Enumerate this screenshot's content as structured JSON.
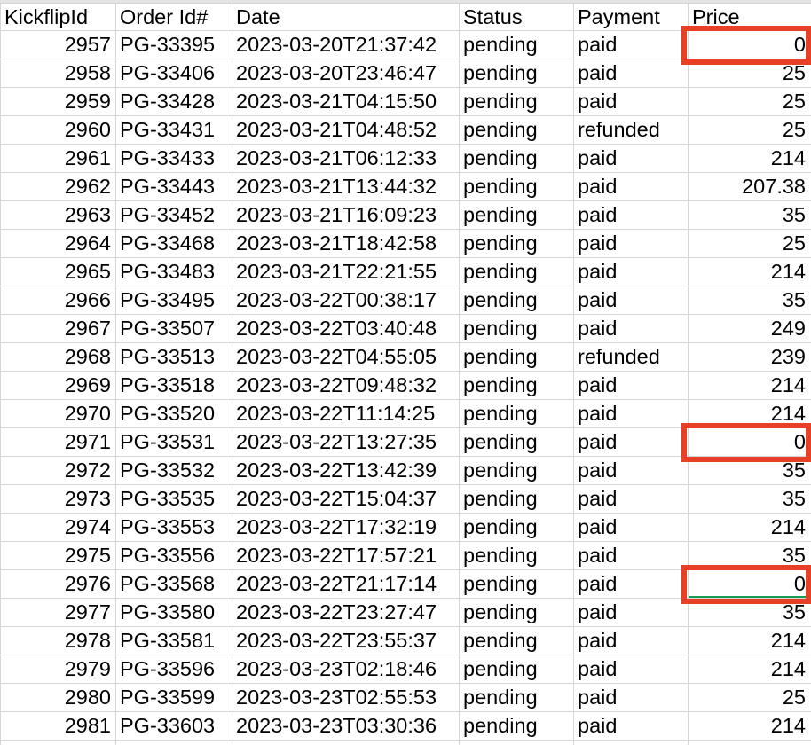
{
  "columns": [
    "KickflipId",
    "Order Id#",
    "Date",
    "Status",
    "Payment",
    "Price"
  ],
  "rows": [
    {
      "kickflip_id": "2957",
      "order_id": "PG-33395",
      "date": "2023-03-20T21:37:42",
      "status": "pending",
      "payment": "paid",
      "price": "0",
      "highlighted": true
    },
    {
      "kickflip_id": "2958",
      "order_id": "PG-33406",
      "date": "2023-03-20T23:46:47",
      "status": "pending",
      "payment": "paid",
      "price": "25"
    },
    {
      "kickflip_id": "2959",
      "order_id": "PG-33428",
      "date": "2023-03-21T04:15:50",
      "status": "pending",
      "payment": "paid",
      "price": "25"
    },
    {
      "kickflip_id": "2960",
      "order_id": "PG-33431",
      "date": "2023-03-21T04:48:52",
      "status": "pending",
      "payment": "refunded",
      "price": "25"
    },
    {
      "kickflip_id": "2961",
      "order_id": "PG-33433",
      "date": "2023-03-21T06:12:33",
      "status": "pending",
      "payment": "paid",
      "price": "214"
    },
    {
      "kickflip_id": "2962",
      "order_id": "PG-33443",
      "date": "2023-03-21T13:44:32",
      "status": "pending",
      "payment": "paid",
      "price": "207.38"
    },
    {
      "kickflip_id": "2963",
      "order_id": "PG-33452",
      "date": "2023-03-21T16:09:23",
      "status": "pending",
      "payment": "paid",
      "price": "35"
    },
    {
      "kickflip_id": "2964",
      "order_id": "PG-33468",
      "date": "2023-03-21T18:42:58",
      "status": "pending",
      "payment": "paid",
      "price": "25"
    },
    {
      "kickflip_id": "2965",
      "order_id": "PG-33483",
      "date": "2023-03-21T22:21:55",
      "status": "pending",
      "payment": "paid",
      "price": "214"
    },
    {
      "kickflip_id": "2966",
      "order_id": "PG-33495",
      "date": "2023-03-22T00:38:17",
      "status": "pending",
      "payment": "paid",
      "price": "35"
    },
    {
      "kickflip_id": "2967",
      "order_id": "PG-33507",
      "date": "2023-03-22T03:40:48",
      "status": "pending",
      "payment": "paid",
      "price": "249"
    },
    {
      "kickflip_id": "2968",
      "order_id": "PG-33513",
      "date": "2023-03-22T04:55:05",
      "status": "pending",
      "payment": "refunded",
      "price": "239"
    },
    {
      "kickflip_id": "2969",
      "order_id": "PG-33518",
      "date": "2023-03-22T09:48:32",
      "status": "pending",
      "payment": "paid",
      "price": "214"
    },
    {
      "kickflip_id": "2970",
      "order_id": "PG-33520",
      "date": "2023-03-22T11:14:25",
      "status": "pending",
      "payment": "paid",
      "price": "214"
    },
    {
      "kickflip_id": "2971",
      "order_id": "PG-33531",
      "date": "2023-03-22T13:27:35",
      "status": "pending",
      "payment": "paid",
      "price": "0",
      "highlighted": true
    },
    {
      "kickflip_id": "2972",
      "order_id": "PG-33532",
      "date": "2023-03-22T13:42:39",
      "status": "pending",
      "payment": "paid",
      "price": "35"
    },
    {
      "kickflip_id": "2973",
      "order_id": "PG-33535",
      "date": "2023-03-22T15:04:37",
      "status": "pending",
      "payment": "paid",
      "price": "35"
    },
    {
      "kickflip_id": "2974",
      "order_id": "PG-33553",
      "date": "2023-03-22T17:32:19",
      "status": "pending",
      "payment": "paid",
      "price": "214"
    },
    {
      "kickflip_id": "2975",
      "order_id": "PG-33556",
      "date": "2023-03-22T17:57:21",
      "status": "pending",
      "payment": "paid",
      "price": "35"
    },
    {
      "kickflip_id": "2976",
      "order_id": "PG-33568",
      "date": "2023-03-22T21:17:14",
      "status": "pending",
      "payment": "paid",
      "price": "0",
      "highlighted": true,
      "selected": true
    },
    {
      "kickflip_id": "2977",
      "order_id": "PG-33580",
      "date": "2023-03-22T23:27:47",
      "status": "pending",
      "payment": "paid",
      "price": "35"
    },
    {
      "kickflip_id": "2978",
      "order_id": "PG-33581",
      "date": "2023-03-22T23:55:37",
      "status": "pending",
      "payment": "paid",
      "price": "214"
    },
    {
      "kickflip_id": "2979",
      "order_id": "PG-33596",
      "date": "2023-03-23T02:18:46",
      "status": "pending",
      "payment": "paid",
      "price": "214"
    },
    {
      "kickflip_id": "2980",
      "order_id": "PG-33599",
      "date": "2023-03-23T02:55:53",
      "status": "pending",
      "payment": "paid",
      "price": "25"
    },
    {
      "kickflip_id": "2981",
      "order_id": "PG-33603",
      "date": "2023-03-23T03:30:36",
      "status": "pending",
      "payment": "paid",
      "price": "214"
    },
    {
      "kickflip_id": "",
      "order_id": "",
      "date": "",
      "status": "",
      "payment": "",
      "price": ""
    }
  ],
  "colors": {
    "highlight": "#e84025",
    "grid": "#d6d6d6",
    "selection": "#1a9c52"
  }
}
